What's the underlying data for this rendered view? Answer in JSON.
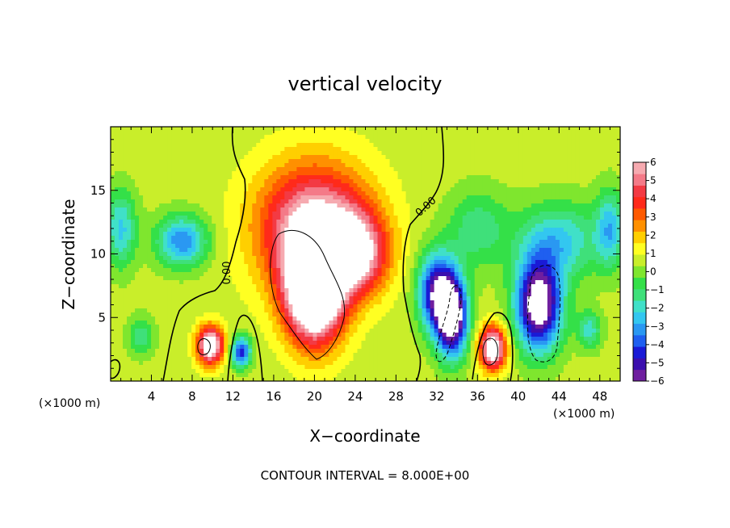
{
  "chart_data": {
    "type": "heatmap",
    "title": "vertical velocity",
    "xlabel": "X−coordinate",
    "ylabel": "Z−coordinate",
    "x_unit_left": "(×1000 m)",
    "x_unit_right": "(×1000 m)",
    "footer": "CONTOUR INTERVAL = 8.000E+00",
    "xlim": [
      0,
      50
    ],
    "ylim": [
      0,
      20
    ],
    "xticks": [
      4,
      8,
      12,
      16,
      20,
      24,
      28,
      32,
      36,
      40,
      44,
      48
    ],
    "yticks": [
      5,
      10,
      15
    ],
    "colorbar": {
      "min": -6,
      "max": 6,
      "tick_labels": [
        "6",
        "5",
        "4",
        "3",
        "2",
        "1",
        "0",
        "−1",
        "−2",
        "−3",
        "−4",
        "−5",
        "−6"
      ],
      "colors": [
        "#6f1f9f",
        "#3b0fae",
        "#1a1ad6",
        "#1f5ff0",
        "#2a98f2",
        "#33c7f0",
        "#40e0c8",
        "#3fe07a",
        "#34e048",
        "#7fe62e",
        "#c9ee2a",
        "#ffff22",
        "#ffcf00",
        "#ff9000",
        "#ff5a00",
        "#ff2a1a",
        "#f33a44",
        "#f47a88",
        "#f6aab0"
      ]
    },
    "contour_labels": [
      "0.00",
      "0.00"
    ],
    "field_centers": [
      {
        "x": 20,
        "z": 12,
        "w": 6,
        "sx": 5.5,
        "sz": 5
      },
      {
        "x": 24,
        "z": 10,
        "w": 5,
        "sx": 3,
        "sz": 3
      },
      {
        "x": 20,
        "z": 7,
        "w": 9,
        "sx": 2.8,
        "sz": 4
      },
      {
        "x": 9.8,
        "z": 2.8,
        "w": 7,
        "sx": 1.3,
        "sz": 1.5
      },
      {
        "x": 37.5,
        "z": 2.6,
        "w": 7,
        "sx": 1.3,
        "sz": 1.7
      },
      {
        "x": 32,
        "z": 7,
        "w": -6,
        "sx": 1.8,
        "sz": 3
      },
      {
        "x": 33.5,
        "z": 5,
        "w": -8,
        "sx": 1.5,
        "sz": 3
      },
      {
        "x": 42,
        "z": 6,
        "w": -8,
        "sx": 2.2,
        "sz": 3.5
      },
      {
        "x": 44,
        "z": 11,
        "w": -3,
        "sx": 4,
        "sz": 3
      },
      {
        "x": 7,
        "z": 11,
        "w": -4,
        "sx": 2.5,
        "sz": 2
      },
      {
        "x": 1,
        "z": 12,
        "w": -3,
        "sx": 1.5,
        "sz": 3
      },
      {
        "x": 12.8,
        "z": 2.3,
        "w": -5,
        "sx": 1,
        "sz": 1.2
      },
      {
        "x": 3,
        "z": 3.5,
        "w": -2,
        "sx": 1.3,
        "sz": 1.5
      },
      {
        "x": 49,
        "z": 12,
        "w": -3,
        "sx": 1.4,
        "sz": 3
      },
      {
        "x": 47,
        "z": 4,
        "w": -2.5,
        "sx": 1.2,
        "sz": 1.5
      },
      {
        "x": 36,
        "z": 12,
        "w": -2,
        "sx": 3,
        "sz": 3
      }
    ]
  }
}
